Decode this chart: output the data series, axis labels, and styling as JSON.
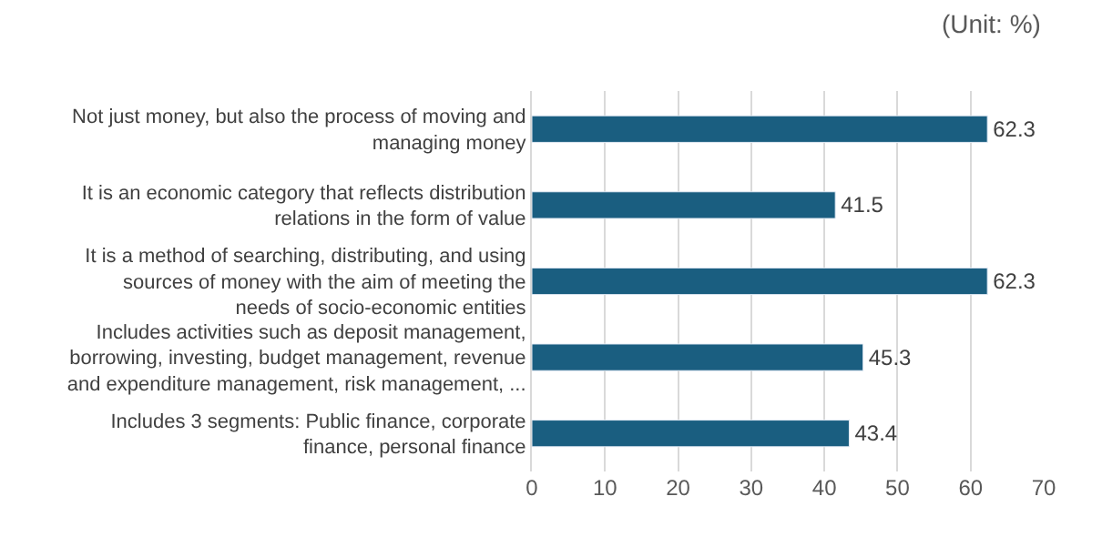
{
  "chart_data": {
    "type": "bar",
    "orientation": "horizontal",
    "categories": [
      "Not just money, but also the process of moving and\nmanaging money",
      "It is an economic category that reflects distribution\nrelations in the form of value",
      "It is a method of searching, distributing, and using\nsources of money with the aim of meeting the\nneeds of socio-economic entities",
      "Includes activities such as deposit management,\nborrowing, investing, budget management, revenue\nand expenditure management, risk management, ...",
      "Includes 3 segments: Public finance, corporate\nfinance, personal finance"
    ],
    "values": [
      62.3,
      41.5,
      62.3,
      45.3,
      43.4
    ],
    "color": "#1a5e80",
    "data_labels": true,
    "xlim": [
      0,
      70
    ],
    "xticks": [
      0,
      10,
      20,
      30,
      40,
      50,
      60,
      70
    ],
    "grid": "x",
    "annotations": [
      "(Unit: %)"
    ]
  }
}
